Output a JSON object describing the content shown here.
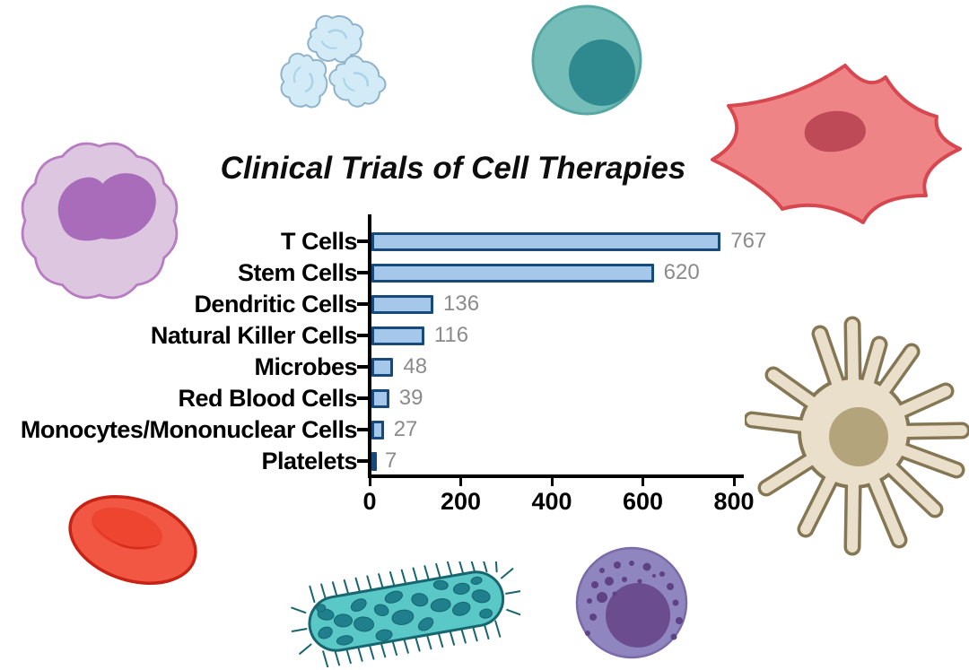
{
  "chart_data": {
    "type": "bar",
    "orientation": "horizontal",
    "title": "Clinical Trials of Cell Therapies",
    "categories": [
      "T Cells",
      "Stem Cells",
      "Dendritic Cells",
      "Natural Killer Cells",
      "Microbes",
      "Red Blood Cells",
      "Monocytes/Mononuclear Cells",
      "Platelets"
    ],
    "values": [
      767,
      620,
      136,
      116,
      48,
      39,
      27,
      7
    ],
    "x_ticks": [
      0,
      200,
      400,
      600,
      800
    ],
    "xlim": [
      0,
      800
    ],
    "grid": false,
    "legend": "none",
    "value_labels_shown": true
  },
  "colors": {
    "bar_fill": "#a5c8ea",
    "bar_border": "#17497a",
    "value_label": "#8b8b8b",
    "axis": "#000000",
    "platelet_fill": "#d3ebf7",
    "platelet_stroke": "#8fb3cb",
    "platelet_detail": "#a9d3e8",
    "stem_fill": "#74bdb8",
    "stem_stroke": "#55a7a3",
    "stem_nucleus": "#2e8a8e",
    "fibro_fill": "#ef8486",
    "fibro_stroke": "#d8474f",
    "fibro_nucleus": "#bf4a57",
    "mono_fill": "#ddc6e0",
    "mono_stroke": "#b87cc2",
    "mono_nucleus": "#a96cba",
    "dc_fill": "#e9dfca",
    "dc_stroke": "#857754",
    "dc_nucleus": "#b4a47c",
    "rbc_fill": "#f15743",
    "rbc_stroke": "#c62316",
    "rbc_inner": "#ed4530",
    "rbc_shadow": "#d52c1c",
    "microbe_fill": "#59c8c7",
    "microbe_stroke": "#17656f",
    "microbe_spot": "#1f7f8d",
    "nk_fill": "#9086bf",
    "nk_stroke": "#7a6aa8",
    "nk_nucleus": "#6b4c8e",
    "nk_granule": "#5e4283"
  },
  "illustrations": [
    "platelets",
    "stem-cell",
    "mesenchymal-stromal-cell",
    "monocyte-white-blood-cell",
    "dendritic-cell",
    "red-blood-cell",
    "ciliated-microbe",
    "nk-cell-lymphocyte"
  ]
}
